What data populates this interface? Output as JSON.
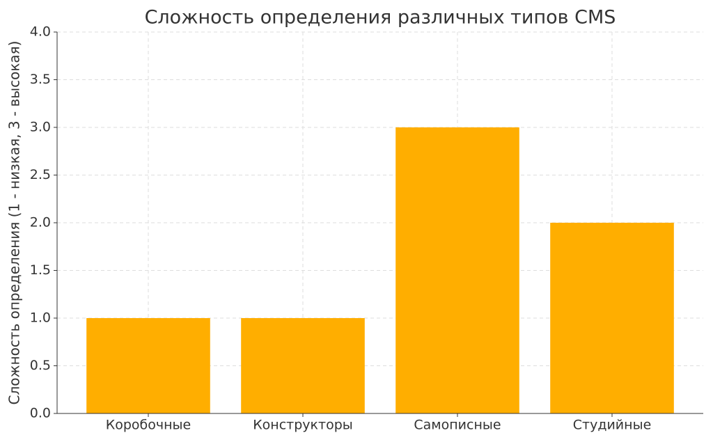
{
  "chart_data": {
    "type": "bar",
    "title": "Сложность определения различных типов CMS",
    "y_label": "Сложность определения (1 - низкая, 3 - высокая)",
    "categories": [
      "Коробочные",
      "Конструкторы",
      "Самописные",
      "Студийные"
    ],
    "values": [
      1,
      1,
      3,
      2
    ],
    "color": "#ffae00",
    "ylim": [
      0,
      4
    ],
    "yticks": [
      {
        "value": 0,
        "label": "0.0"
      },
      0.5,
      {
        "value": 1,
        "label": "1.0"
      },
      1.5,
      {
        "value": 2,
        "label": "2.0"
      },
      2.5,
      {
        "value": 3,
        "label": "3.0"
      },
      3.5,
      {
        "value": 4,
        "label": "4.0"
      }
    ],
    "grid": true
  }
}
